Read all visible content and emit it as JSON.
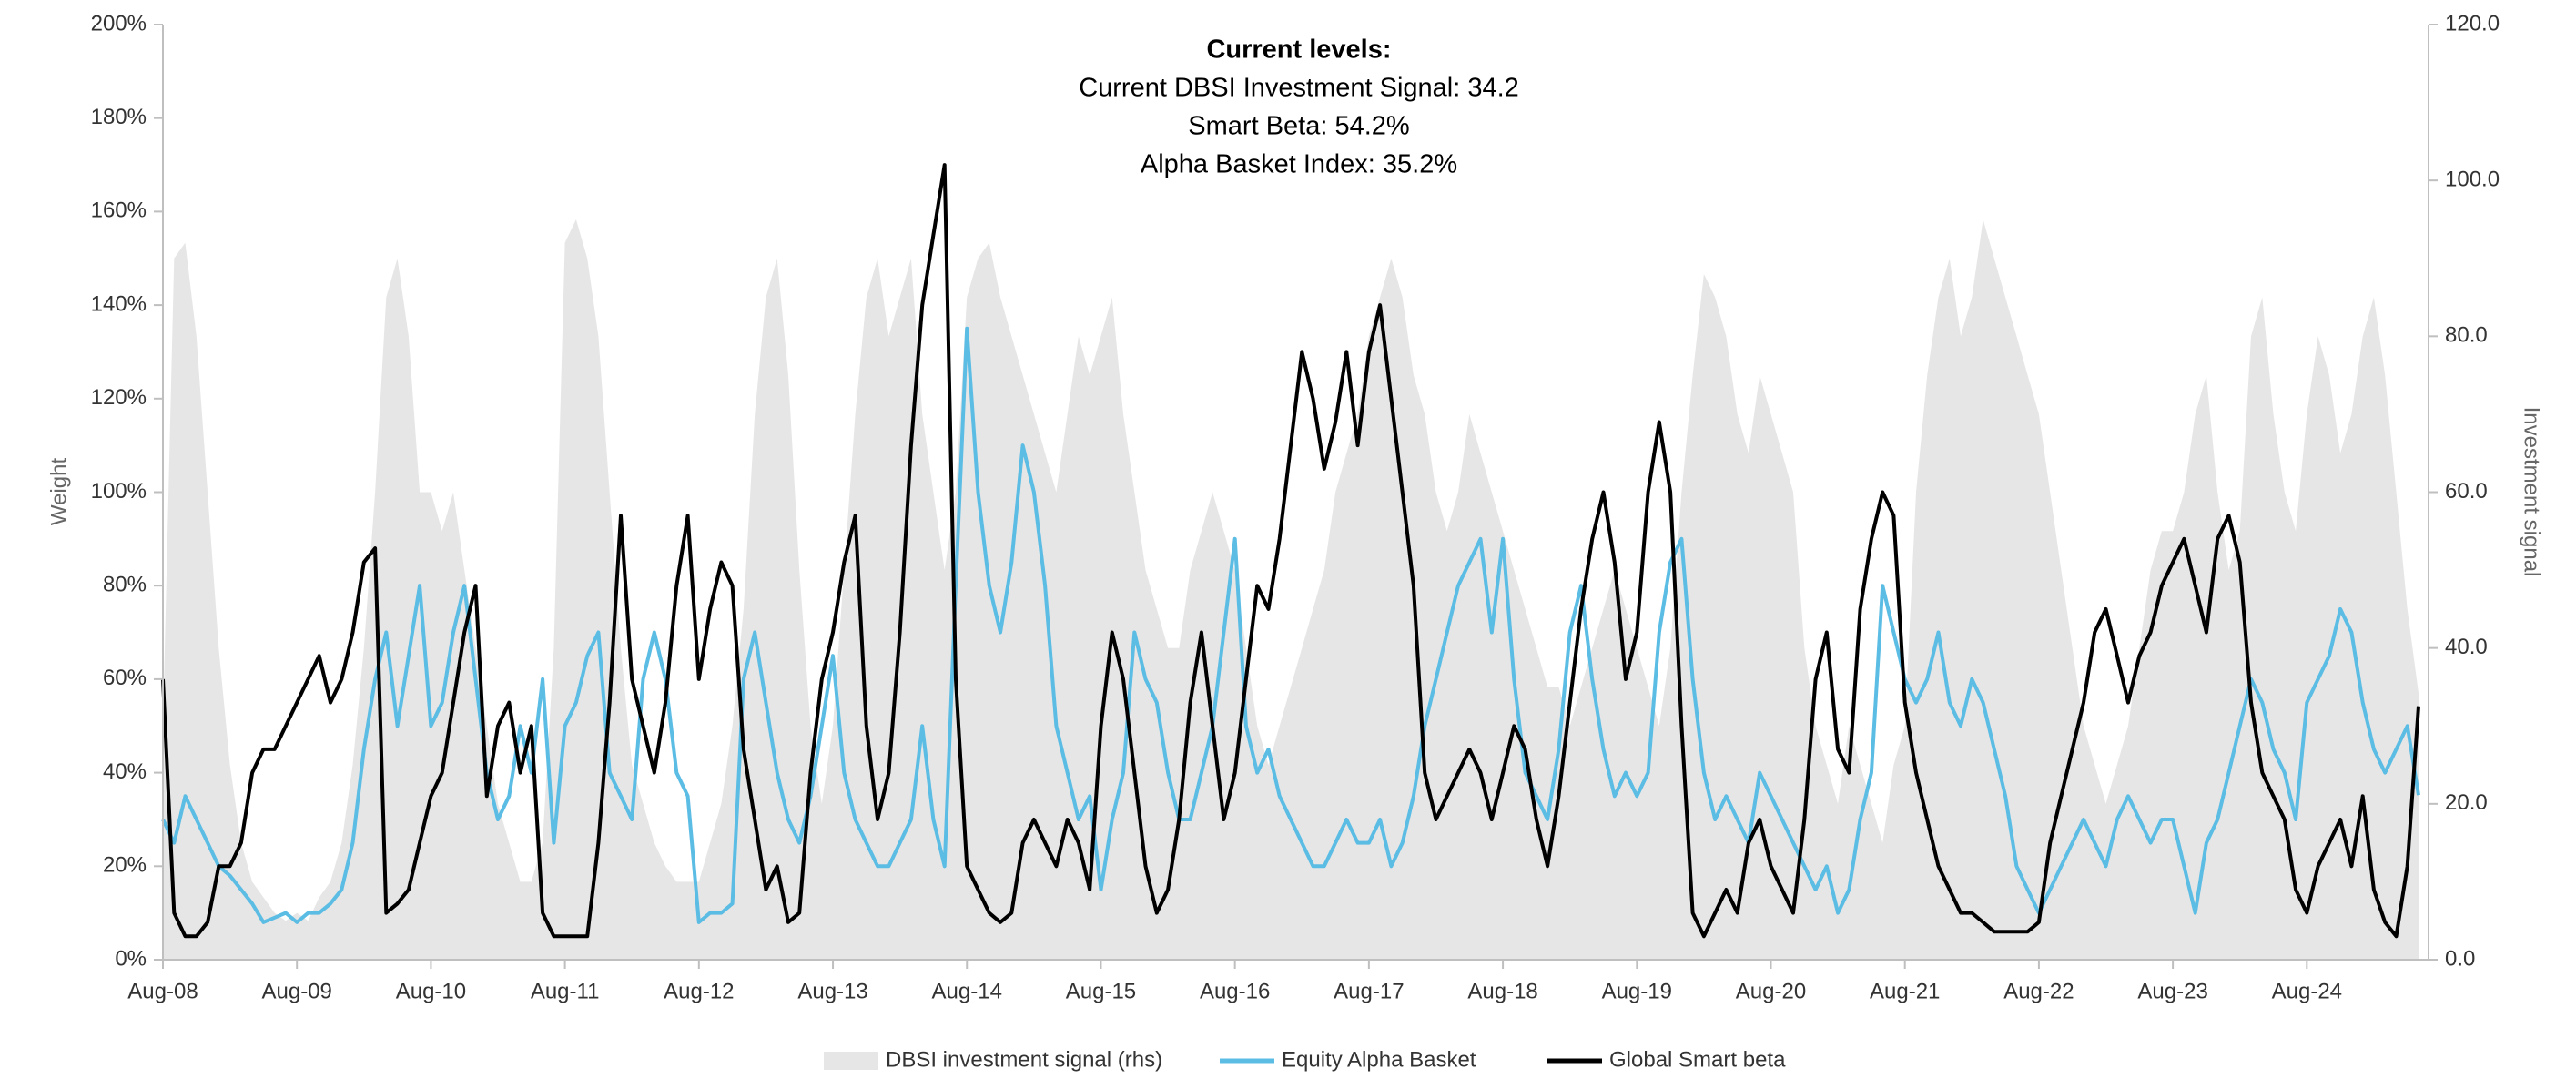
{
  "chart_data": {
    "type": "line",
    "title": "Current levels:",
    "annotations": [
      "Current DBSI Investment Signal: 34.2",
      "Smart Beta: 54.2%",
      "Alpha Basket Index: 35.2%"
    ],
    "ylabel": "Weight",
    "y2label": "Investment signal",
    "x": [
      "2008-08",
      "2008-09",
      "2008-10",
      "2008-11",
      "2008-12",
      "2009-01",
      "2009-02",
      "2009-03",
      "2009-04",
      "2009-05",
      "2009-06",
      "2009-07",
      "2009-08",
      "2009-09",
      "2009-10",
      "2009-11",
      "2009-12",
      "2010-01",
      "2010-02",
      "2010-03",
      "2010-04",
      "2010-05",
      "2010-06",
      "2010-07",
      "2010-08",
      "2010-09",
      "2010-10",
      "2010-11",
      "2010-12",
      "2011-01",
      "2011-02",
      "2011-03",
      "2011-04",
      "2011-05",
      "2011-06",
      "2011-07",
      "2011-08",
      "2011-09",
      "2011-10",
      "2011-11",
      "2011-12",
      "2012-01",
      "2012-02",
      "2012-03",
      "2012-04",
      "2012-05",
      "2012-06",
      "2012-07",
      "2012-08",
      "2012-09",
      "2012-10",
      "2012-11",
      "2012-12",
      "2013-01",
      "2013-02",
      "2013-03",
      "2013-04",
      "2013-05",
      "2013-06",
      "2013-07",
      "2013-08",
      "2013-09",
      "2013-10",
      "2013-11",
      "2013-12",
      "2014-01",
      "2014-02",
      "2014-03",
      "2014-04",
      "2014-05",
      "2014-06",
      "2014-07",
      "2014-08",
      "2014-09",
      "2014-10",
      "2014-11",
      "2014-12",
      "2015-01",
      "2015-02",
      "2015-03",
      "2015-04",
      "2015-05",
      "2015-06",
      "2015-07",
      "2015-08",
      "2015-09",
      "2015-10",
      "2015-11",
      "2015-12",
      "2016-01",
      "2016-02",
      "2016-03",
      "2016-04",
      "2016-05",
      "2016-06",
      "2016-07",
      "2016-08",
      "2016-09",
      "2016-10",
      "2016-11",
      "2016-12",
      "2017-01",
      "2017-02",
      "2017-03",
      "2017-04",
      "2017-05",
      "2017-06",
      "2017-07",
      "2017-08",
      "2017-09",
      "2017-10",
      "2017-11",
      "2017-12",
      "2018-01",
      "2018-02",
      "2018-03",
      "2018-04",
      "2018-05",
      "2018-06",
      "2018-07",
      "2018-08",
      "2018-09",
      "2018-10",
      "2018-11",
      "2018-12",
      "2019-01",
      "2019-02",
      "2019-03",
      "2019-04",
      "2019-05",
      "2019-06",
      "2019-07",
      "2019-08",
      "2019-09",
      "2019-10",
      "2019-11",
      "2019-12",
      "2020-01",
      "2020-02",
      "2020-03",
      "2020-04",
      "2020-05",
      "2020-06",
      "2020-07",
      "2020-08",
      "2020-09",
      "2020-10",
      "2020-11",
      "2020-12",
      "2021-01",
      "2021-02",
      "2021-03",
      "2021-04",
      "2021-05",
      "2021-06",
      "2021-07",
      "2021-08",
      "2021-09",
      "2021-10",
      "2021-11",
      "2021-12",
      "2022-01",
      "2022-02",
      "2022-03",
      "2022-04",
      "2022-05",
      "2022-06",
      "2022-07",
      "2022-08",
      "2022-09",
      "2022-10",
      "2022-11",
      "2022-12",
      "2023-01",
      "2023-02",
      "2023-03",
      "2023-04",
      "2023-05",
      "2023-06",
      "2023-07",
      "2023-08",
      "2023-09",
      "2023-10",
      "2023-11",
      "2023-12",
      "2024-01",
      "2024-02",
      "2024-03",
      "2024-04",
      "2024-05",
      "2024-06",
      "2024-07",
      "2024-08",
      "2024-09",
      "2024-10",
      "2024-11",
      "2024-12",
      "2025-01",
      "2025-02",
      "2025-03",
      "2025-04",
      "2025-05",
      "2025-06"
    ],
    "xlim": [
      "2008-08",
      "2025-06"
    ],
    "xticks": [
      {
        "value": "2008-08",
        "label": "Aug-08"
      },
      {
        "value": "2009-08",
        "label": "Aug-09"
      },
      {
        "value": "2010-08",
        "label": "Aug-10"
      },
      {
        "value": "2011-08",
        "label": "Aug-11"
      },
      {
        "value": "2012-08",
        "label": "Aug-12"
      },
      {
        "value": "2013-08",
        "label": "Aug-13"
      },
      {
        "value": "2014-08",
        "label": "Aug-14"
      },
      {
        "value": "2015-08",
        "label": "Aug-15"
      },
      {
        "value": "2016-08",
        "label": "Aug-16"
      },
      {
        "value": "2017-08",
        "label": "Aug-17"
      },
      {
        "value": "2018-08",
        "label": "Aug-18"
      },
      {
        "value": "2019-08",
        "label": "Aug-19"
      },
      {
        "value": "2020-08",
        "label": "Aug-20"
      },
      {
        "value": "2021-08",
        "label": "Aug-21"
      },
      {
        "value": "2022-08",
        "label": "Aug-22"
      },
      {
        "value": "2023-08",
        "label": "Aug-23"
      },
      {
        "value": "2024-08",
        "label": "Aug-24"
      }
    ],
    "ylim": [
      0,
      200
    ],
    "yticks": [
      {
        "value": 0,
        "label": "0%"
      },
      {
        "value": 20,
        "label": "20%"
      },
      {
        "value": 40,
        "label": "40%"
      },
      {
        "value": 60,
        "label": "60%"
      },
      {
        "value": 80,
        "label": "80%"
      },
      {
        "value": 100,
        "label": "100%"
      },
      {
        "value": 120,
        "label": "120%"
      },
      {
        "value": 140,
        "label": "140%"
      },
      {
        "value": 160,
        "label": "160%"
      },
      {
        "value": 180,
        "label": "180%"
      },
      {
        "value": 200,
        "label": "200%"
      }
    ],
    "y2lim": [
      0,
      120
    ],
    "y2ticks": [
      {
        "value": 0,
        "label": "0.0"
      },
      {
        "value": 20,
        "label": "20.0"
      },
      {
        "value": 40,
        "label": "40.0"
      },
      {
        "value": 60,
        "label": "60.0"
      },
      {
        "value": 80,
        "label": "80.0"
      },
      {
        "value": 100,
        "label": "100.0"
      },
      {
        "value": 120,
        "label": "120.0"
      }
    ],
    "legend": "bottom",
    "series": [
      {
        "name": "DBSI investment signal (rhs)",
        "color": "#e6e6e6",
        "kind": "area",
        "axis": "y2",
        "values": [
          30,
          90,
          92,
          80,
          60,
          40,
          25,
          15,
          10,
          8,
          6,
          5,
          6,
          5,
          8,
          10,
          15,
          25,
          40,
          60,
          85,
          90,
          80,
          60,
          60,
          55,
          60,
          50,
          40,
          30,
          20,
          15,
          10,
          10,
          15,
          40,
          92,
          95,
          90,
          80,
          60,
          40,
          25,
          20,
          15,
          12,
          10,
          10,
          10,
          15,
          20,
          30,
          45,
          70,
          85,
          90,
          75,
          50,
          30,
          20,
          30,
          50,
          70,
          85,
          90,
          80,
          85,
          90,
          70,
          60,
          50,
          60,
          85,
          90,
          92,
          85,
          80,
          75,
          70,
          65,
          60,
          70,
          80,
          75,
          80,
          85,
          70,
          60,
          50,
          45,
          40,
          40,
          50,
          55,
          60,
          55,
          50,
          40,
          30,
          25,
          30,
          35,
          40,
          45,
          50,
          60,
          65,
          70,
          80,
          85,
          90,
          85,
          75,
          70,
          60,
          55,
          60,
          70,
          65,
          60,
          55,
          50,
          45,
          40,
          35,
          35,
          30,
          35,
          40,
          45,
          50,
          45,
          40,
          35,
          30,
          40,
          60,
          75,
          88,
          85,
          80,
          70,
          65,
          75,
          70,
          65,
          60,
          40,
          30,
          25,
          20,
          30,
          25,
          20,
          15,
          25,
          30,
          60,
          75,
          85,
          90,
          80,
          85,
          95,
          90,
          85,
          80,
          75,
          70,
          60,
          50,
          40,
          30,
          25,
          20,
          25,
          30,
          40,
          50,
          55,
          55,
          60,
          70,
          75,
          60,
          50,
          55,
          80,
          85,
          70,
          60,
          55,
          70,
          80,
          75,
          65,
          70,
          80,
          85,
          75,
          60,
          45,
          34.2
        ]
      },
      {
        "name": "Equity Alpha Basket",
        "color": "#5bbce4",
        "kind": "line",
        "values": [
          30,
          25,
          35,
          30,
          25,
          20,
          18,
          15,
          12,
          8,
          9,
          10,
          8,
          10,
          10,
          12,
          15,
          25,
          45,
          60,
          70,
          50,
          65,
          80,
          50,
          55,
          70,
          80,
          60,
          40,
          30,
          35,
          50,
          40,
          60,
          25,
          50,
          55,
          65,
          70,
          40,
          35,
          30,
          60,
          70,
          60,
          40,
          35,
          8,
          10,
          10,
          12,
          60,
          70,
          55,
          40,
          30,
          25,
          35,
          50,
          65,
          40,
          30,
          25,
          20,
          20,
          25,
          30,
          50,
          30,
          20,
          80,
          135,
          100,
          80,
          70,
          85,
          110,
          100,
          80,
          50,
          40,
          30,
          35,
          15,
          30,
          40,
          70,
          60,
          55,
          40,
          30,
          30,
          40,
          50,
          70,
          90,
          50,
          40,
          45,
          35,
          30,
          25,
          20,
          20,
          25,
          30,
          25,
          25,
          30,
          20,
          25,
          35,
          50,
          60,
          70,
          80,
          85,
          90,
          70,
          90,
          60,
          40,
          35,
          30,
          45,
          70,
          80,
          60,
          45,
          35,
          40,
          35,
          40,
          70,
          85,
          90,
          60,
          40,
          30,
          35,
          30,
          25,
          40,
          35,
          30,
          25,
          20,
          15,
          20,
          10,
          15,
          30,
          40,
          80,
          70,
          60,
          55,
          60,
          70,
          55,
          50,
          60,
          55,
          45,
          35,
          20,
          15,
          10,
          15,
          20,
          25,
          30,
          25,
          20,
          30,
          35,
          30,
          25,
          30,
          30,
          20,
          10,
          25,
          30,
          40,
          50,
          60,
          55,
          45,
          40,
          30,
          55,
          60,
          65,
          75,
          70,
          55,
          45,
          40,
          45,
          50,
          35.2
        ]
      },
      {
        "name": "Global Smart beta",
        "color": "#000000",
        "kind": "line",
        "values": [
          60,
          10,
          5,
          5,
          8,
          20,
          20,
          25,
          40,
          45,
          45,
          50,
          55,
          60,
          65,
          55,
          60,
          70,
          85,
          88,
          10,
          12,
          15,
          25,
          35,
          40,
          55,
          70,
          80,
          35,
          50,
          55,
          40,
          50,
          10,
          5,
          5,
          5,
          5,
          25,
          55,
          95,
          60,
          50,
          40,
          55,
          80,
          95,
          60,
          75,
          85,
          80,
          45,
          30,
          15,
          20,
          8,
          10,
          40,
          60,
          70,
          85,
          95,
          50,
          30,
          40,
          70,
          110,
          140,
          155,
          170,
          60,
          20,
          15,
          10,
          8,
          10,
          25,
          30,
          25,
          20,
          30,
          25,
          15,
          50,
          70,
          60,
          40,
          20,
          10,
          15,
          30,
          55,
          70,
          50,
          30,
          40,
          60,
          80,
          75,
          90,
          110,
          130,
          120,
          105,
          115,
          130,
          110,
          130,
          140,
          120,
          100,
          80,
          40,
          30,
          35,
          40,
          45,
          40,
          30,
          40,
          50,
          45,
          30,
          20,
          35,
          55,
          75,
          90,
          100,
          85,
          60,
          70,
          100,
          115,
          100,
          50,
          10,
          5,
          10,
          15,
          10,
          25,
          30,
          20,
          15,
          10,
          30,
          60,
          70,
          45,
          40,
          75,
          90,
          100,
          95,
          55,
          40,
          30,
          20,
          15,
          10,
          10,
          8,
          6,
          6,
          6,
          6,
          8,
          25,
          35,
          45,
          55,
          70,
          75,
          65,
          55,
          65,
          70,
          80,
          85,
          90,
          80,
          70,
          90,
          95,
          85,
          55,
          40,
          35,
          30,
          15,
          10,
          20,
          25,
          30,
          20,
          35,
          15,
          8,
          5,
          20,
          54.2
        ]
      }
    ]
  }
}
